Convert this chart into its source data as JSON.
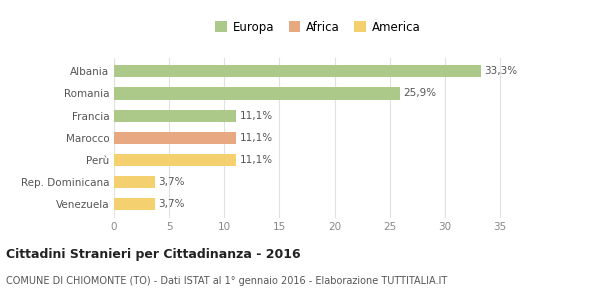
{
  "categories": [
    "Venezuela",
    "Rep. Dominicana",
    "Perù",
    "Marocco",
    "Francia",
    "Romania",
    "Albania"
  ],
  "values": [
    3.7,
    3.7,
    11.1,
    11.1,
    11.1,
    25.9,
    33.3
  ],
  "labels": [
    "3,7%",
    "3,7%",
    "11,1%",
    "11,1%",
    "11,1%",
    "25,9%",
    "33,3%"
  ],
  "colors": [
    "#f5d06e",
    "#f5d06e",
    "#f5d06e",
    "#e8a882",
    "#adc98a",
    "#adc98a",
    "#adc98a"
  ],
  "legend": [
    {
      "label": "Europa",
      "color": "#adc98a"
    },
    {
      "label": "Africa",
      "color": "#e8a882"
    },
    {
      "label": "America",
      "color": "#f5d06e"
    }
  ],
  "xlim": [
    0,
    37
  ],
  "xticks": [
    0,
    5,
    10,
    15,
    20,
    25,
    30,
    35
  ],
  "title": "Cittadini Stranieri per Cittadinanza - 2016",
  "subtitle": "COMUNE DI CHIOMONTE (TO) - Dati ISTAT al 1° gennaio 2016 - Elaborazione TUTTITALIA.IT",
  "background_color": "#ffffff",
  "grid_color": "#e0e0e0",
  "bar_height": 0.55,
  "label_fontsize": 7.5,
  "tick_label_fontsize": 7.5,
  "legend_fontsize": 8.5,
  "title_fontsize": 9,
  "subtitle_fontsize": 7
}
